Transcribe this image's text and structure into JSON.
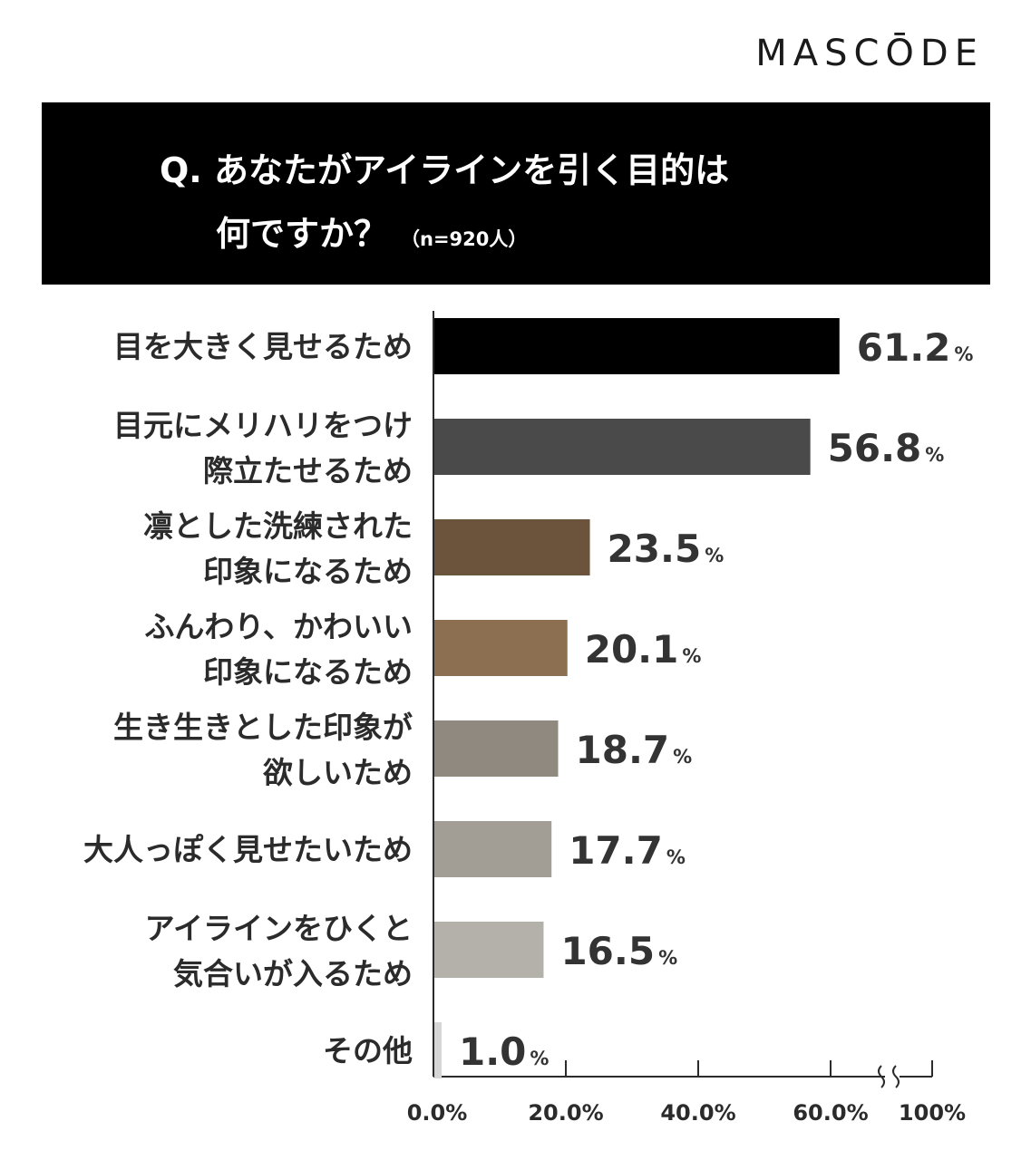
{
  "brand": "MASCŌDE",
  "header": {
    "line1": "Q. あなたがアイラインを引く目的は",
    "line2": "何ですか？",
    "sample": "（n=920人）"
  },
  "chart_data": {
    "type": "bar",
    "orientation": "horizontal",
    "categories": [
      [
        "目を大きく見せるため"
      ],
      [
        "目元にメリハリをつけ",
        "際立たせるため"
      ],
      [
        "凛とした洗練された",
        "印象になるため"
      ],
      [
        "ふんわり、かわいい",
        "印象になるため"
      ],
      [
        "生き生きとした印象が",
        "欲しいため"
      ],
      [
        "大人っぽく見せたいため"
      ],
      [
        "アイラインをひくと",
        "気合いが入るため"
      ],
      [
        "その他"
      ]
    ],
    "values": [
      61.2,
      56.8,
      23.5,
      20.1,
      18.7,
      17.7,
      16.5,
      1.0
    ],
    "value_labels": [
      "61.2",
      "56.8",
      "23.5",
      "20.1",
      "18.7",
      "17.7",
      "16.5",
      "1.0"
    ],
    "unit": "%",
    "colors": [
      "#000000",
      "#4a4a4a",
      "#6b543b",
      "#8c6e50",
      "#8f8980",
      "#a39e95",
      "#b4b0aa",
      "#d6d6d6"
    ],
    "x_ticks": [
      "0.0%",
      "20.0%",
      "40.0%",
      "60.0%",
      "100%"
    ],
    "xlim": [
      0,
      100
    ],
    "axis_break": true
  }
}
